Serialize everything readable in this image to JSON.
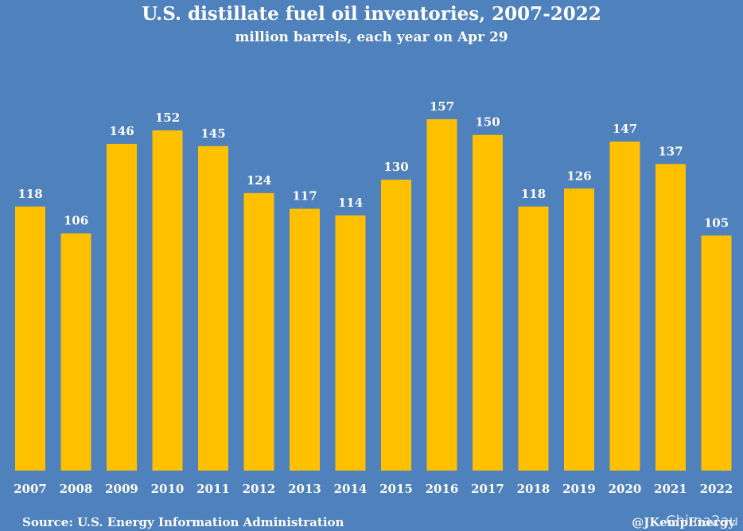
{
  "chart_data": {
    "type": "bar",
    "title": "U.S. distillate fuel oil inventories, 2007-2022",
    "subtitle": "million barrels, each year on Apr 29",
    "categories": [
      "2007",
      "2008",
      "2009",
      "2010",
      "2011",
      "2012",
      "2013",
      "2014",
      "2015",
      "2016",
      "2017",
      "2018",
      "2019",
      "2020",
      "2021",
      "2022"
    ],
    "values": [
      118,
      106,
      146,
      152,
      145,
      124,
      117,
      114,
      130,
      157,
      150,
      118,
      126,
      147,
      137,
      105
    ],
    "ylim": [
      0,
      157
    ],
    "grid": false,
    "bar_color": "#ffc000",
    "background_color": "#4f81bd"
  },
  "footer": {
    "source": "Source: U.S. Energy Information Administration",
    "credit": "@JKempEnergy",
    "watermark": "Chi.na2au"
  }
}
